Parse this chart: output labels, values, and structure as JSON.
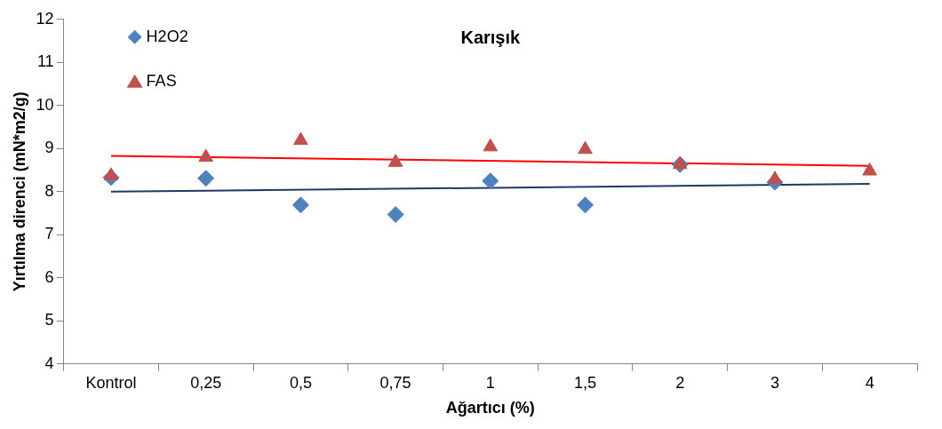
{
  "chart_data": {
    "type": "scatter",
    "title": "Karışık",
    "xlabel": "Ağartıcı (%)",
    "ylabel": "Yırtılma direnci (mN*m2/g)",
    "categories": [
      "Kontrol",
      "0,25",
      "0,5",
      "0,75",
      "1",
      "1,5",
      "2",
      "3",
      "4"
    ],
    "ylim": [
      4,
      12
    ],
    "yticks": [
      4,
      5,
      6,
      7,
      8,
      9,
      10,
      11,
      12
    ],
    "grid": false,
    "legend": "top left",
    "series": [
      {
        "name": "H2O2",
        "color": "#4f81bd",
        "marker": "diamond",
        "values": [
          8.33,
          8.31,
          7.69,
          7.47,
          8.25,
          7.69,
          8.63,
          8.22,
          null
        ]
      },
      {
        "name": "FAS",
        "color": "#c0504d",
        "marker": "triangle",
        "values": [
          8.37,
          8.8,
          9.19,
          8.68,
          9.04,
          8.98,
          8.63,
          8.29,
          8.48
        ]
      },
      {
        "type": "line",
        "color": "#ff0000",
        "marker": "none",
        "values": [
          8.83,
          null,
          null,
          null,
          null,
          null,
          null,
          null,
          8.6
        ]
      },
      {
        "type": "line",
        "color": "#1f3864",
        "marker": "none",
        "values": [
          8.0,
          null,
          null,
          null,
          null,
          null,
          null,
          null,
          8.18
        ]
      }
    ]
  }
}
